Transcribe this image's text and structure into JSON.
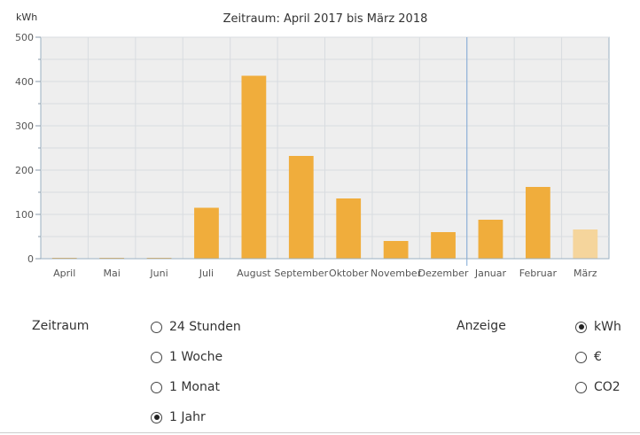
{
  "chart_data": {
    "type": "bar",
    "title": "Zeitraum: April 2017 bis März 2018",
    "ylabel": "kWh",
    "ylim": [
      0,
      500
    ],
    "yticks": [
      0,
      100,
      200,
      300,
      400,
      500
    ],
    "categories": [
      "April",
      "Mai",
      "Juni",
      "Juli",
      "August",
      "September",
      "Oktober",
      "November",
      "Dezember",
      "Januar",
      "Februar",
      "März"
    ],
    "values": [
      2,
      2,
      2,
      115,
      413,
      232,
      136,
      40,
      60,
      88,
      162,
      66
    ],
    "bar_color": "#f0ad3c",
    "highlight_color": "#f5d59c",
    "highlight_index": 11,
    "grid": true,
    "divider_after_category": "Dezember"
  },
  "controls": {
    "zeitraum": {
      "label": "Zeitraum",
      "options": [
        {
          "label": "24 Stunden",
          "checked": false
        },
        {
          "label": "1 Woche",
          "checked": false
        },
        {
          "label": "1 Monat",
          "checked": false
        },
        {
          "label": "1 Jahr",
          "checked": true
        }
      ]
    },
    "anzeige": {
      "label": "Anzeige",
      "options": [
        {
          "label": "kWh",
          "checked": true
        },
        {
          "label": "€",
          "checked": false
        },
        {
          "label": "CO2",
          "checked": false
        }
      ]
    }
  }
}
